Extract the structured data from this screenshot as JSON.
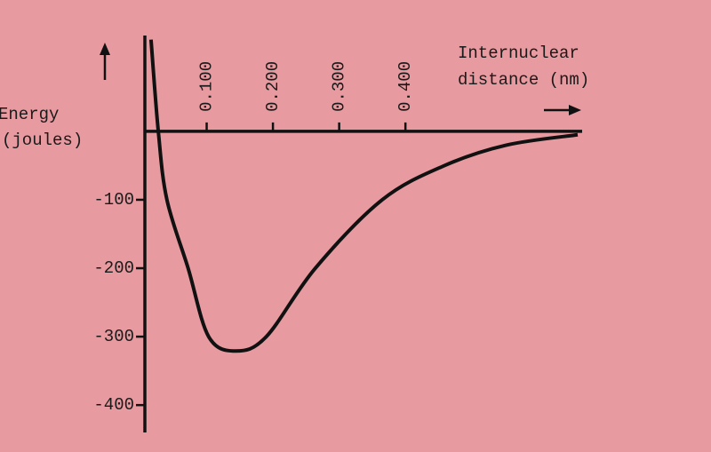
{
  "chart_data": {
    "type": "line",
    "xlabel_lines": [
      "Internuclear",
      "distance (nm)"
    ],
    "ylabel_lines": [
      "Energy",
      "(joules)"
    ],
    "x": [
      0.016,
      0.027,
      0.04,
      0.072,
      0.103,
      0.144,
      0.19,
      0.264,
      0.365,
      0.459,
      0.553,
      0.66
    ],
    "series": [
      {
        "color": "#111111",
        "values": [
          134,
          0,
          -100,
          -200,
          -300,
          -321,
          -300,
          -200,
          -100,
          -50,
          -20,
          -5
        ]
      }
    ],
    "xlim": [
      0,
      0.66
    ],
    "ylim": [
      -440,
      140
    ],
    "xticks": [
      {
        "value": 0.1,
        "label": "0.100"
      },
      {
        "value": 0.2,
        "label": "0.200"
      },
      {
        "value": 0.3,
        "label": "0.300"
      },
      {
        "value": 0.4,
        "label": "0.400"
      }
    ],
    "yticks": [
      -100,
      -200,
      -300,
      -400
    ]
  }
}
